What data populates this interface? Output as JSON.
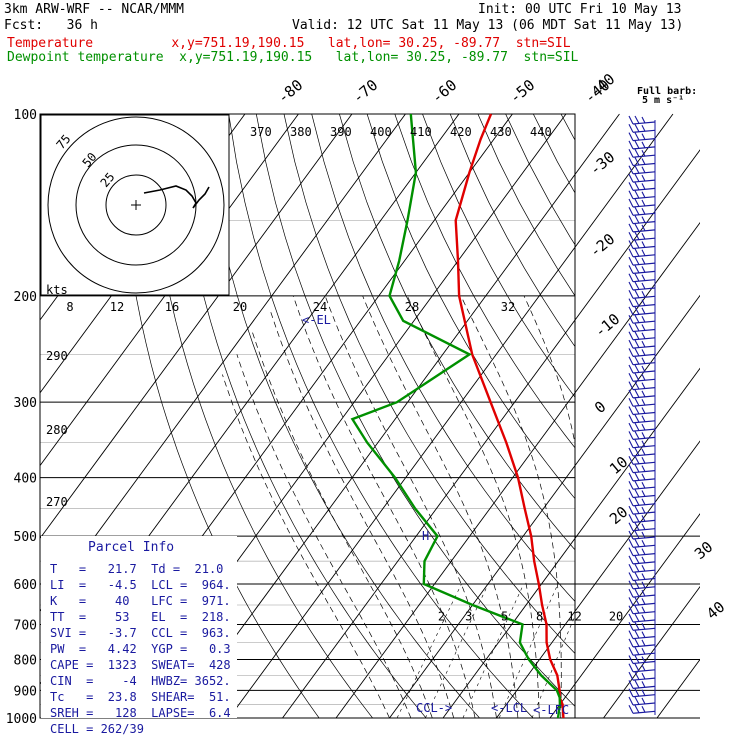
{
  "header": {
    "model": "3km ARW-WRF -- NCAR/MMM",
    "init": "Init: 00 UTC Fri 10 May 13",
    "fcst": "Fcst:   36 h",
    "valid": "Valid: 12 UTC Sat 11 May 13 (06 MDT Sat 11 May 13)",
    "temp_line": "Temperature          x,y=751.19,190.15   lat,lon= 30.25, -89.77  stn=SIL",
    "dew_line": "Dewpoint temperature  x,y=751.19,190.15   lat,lon= 30.25, -89.77  stn=SIL"
  },
  "colors": {
    "temperature": "#e00000",
    "dewpoint": "#009000",
    "annot": "#1a1aa0"
  },
  "barb_legend": {
    "line1": "Full barb:",
    "line2": "5 m s⁻¹"
  },
  "hodograph": {
    "units": "kts",
    "rings": [
      "75",
      "50",
      "25"
    ]
  },
  "parcel_info": {
    "title": "Parcel Info",
    "rows": [
      "T   =   21.7  Td =  21.0",
      "LI  =   -4.5  LCL =  964.",
      "K   =    40   LFC =  971.",
      "TT  =    53   EL  =  218.",
      "SVI =   -3.7  CCL =  963.",
      "PW  =   4.42  YGP =   0.3",
      "CAPE =  1323  SWEAT=  428",
      "CIN  =    -4  HWBZ= 3652.",
      "Tc   =  23.8  SHEAR=  51.",
      "SREH =   128  LAPSE=  6.4",
      "CELL = 262/39"
    ]
  },
  "labels": {
    "el": "<-EL",
    "ccl": "CCL->",
    "lcl": "<-LCL",
    "lfc": "<-LFC"
  },
  "chart_data": {
    "type": "line",
    "title": "",
    "ylabel": "",
    "xlabel": "",
    "pressure_levels": [
      100,
      200,
      300,
      400,
      500,
      600,
      700,
      800,
      900,
      1000
    ],
    "isotherm_labels": [
      "-40",
      "-30",
      "-20",
      "-10",
      "0",
      "10",
      "20",
      "30",
      "40"
    ],
    "isotherm_top_labels": [
      "-80",
      "-70",
      "-60",
      "-50",
      "-40"
    ],
    "theta_e_labels": [
      "370",
      "380",
      "390",
      "400",
      "410",
      "420",
      "430",
      "440"
    ],
    "theta_labels": [
      "290",
      "280",
      "270"
    ],
    "mixing_ratio_labels": [
      "2",
      "3",
      "5",
      "8",
      "12",
      "20"
    ],
    "hodo_speed_labels": [
      "8",
      "12",
      "16",
      "20",
      "24",
      "28",
      "32"
    ],
    "series": [
      {
        "name": "Temperature",
        "p": [
          1000,
          950,
          925,
          900,
          850,
          800,
          750,
          700,
          650,
          600,
          550,
          500,
          450,
          400,
          350,
          300,
          250,
          200,
          175,
          150,
          125,
          110,
          100
        ],
        "t": [
          22.5,
          20.5,
          19.0,
          18.0,
          15.5,
          12.0,
          9.0,
          6.5,
          3.0,
          -0.5,
          -4.5,
          -8.5,
          -13.5,
          -19.0,
          -26.0,
          -34.5,
          -44.5,
          -55.0,
          -60.0,
          -66.0,
          -70.0,
          -72.5,
          -74.0
        ]
      },
      {
        "name": "Dewpoint temperature",
        "p": [
          1000,
          950,
          925,
          900,
          850,
          800,
          750,
          700,
          650,
          600,
          550,
          500,
          450,
          400,
          350,
          320,
          300,
          250,
          220,
          200,
          175,
          150,
          125,
          100
        ],
        "t": [
          21.5,
          20.0,
          19.0,
          17.5,
          12.5,
          8.0,
          4.0,
          2.0,
          -10.0,
          -22.0,
          -25.0,
          -26.0,
          -34.0,
          -42.0,
          -52.0,
          -58.0,
          -52.0,
          -45.0,
          -62.0,
          -68.0,
          -71.0,
          -75.0,
          -80.0,
          -89.0
        ]
      }
    ]
  }
}
